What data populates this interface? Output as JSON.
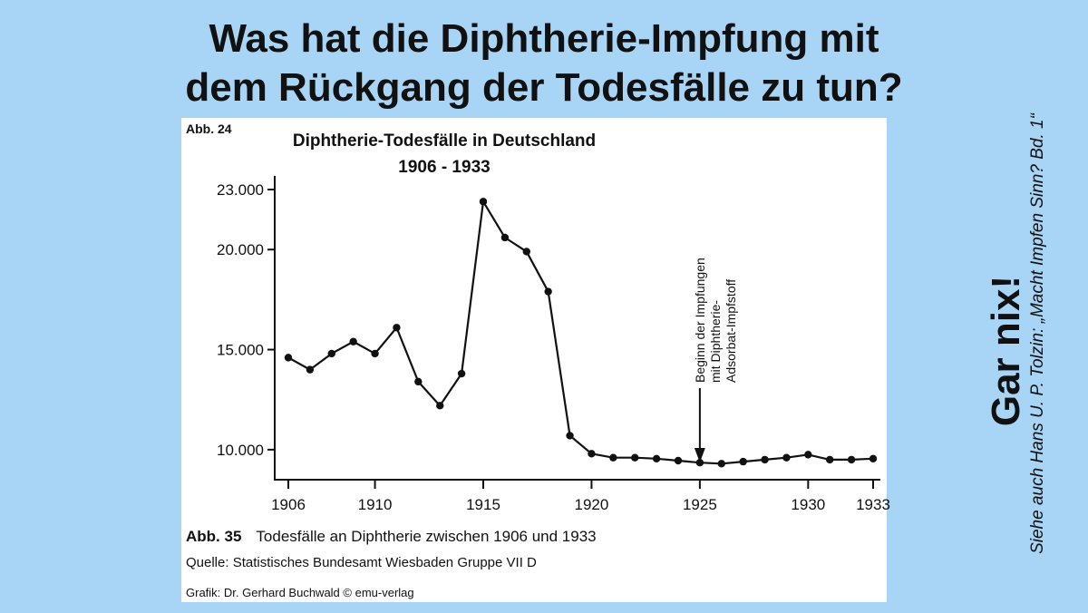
{
  "headline": {
    "line1": "Was hat die Diphtherie-Impfung mit",
    "line2": "dem Rückgang der Todesfälle zu tun?"
  },
  "side": {
    "verdict": "Gar nix!",
    "source": "Siehe auch Hans U. P. Tolzin: „Macht Impfen Sinn? Bd. 1“"
  },
  "figure": {
    "label_top": "Abb. 24",
    "caption_label": "Abb. 35",
    "caption_text": "Todesfälle an Diphtherie zwischen 1906 und 1933",
    "quelle": "Quelle: Statistisches Bundesamt Wiesbaden Gruppe VII D",
    "credit": "Grafik: Dr. Gerhard Buchwald   © emu-verlag"
  },
  "chart_data": {
    "type": "line",
    "title": "Diphtherie-Todesfälle in Deutschland",
    "subtitle": "1906 - 1933",
    "x": [
      1906,
      1907,
      1908,
      1909,
      1910,
      1911,
      1912,
      1913,
      1914,
      1915,
      1916,
      1917,
      1918,
      1919,
      1920,
      1921,
      1922,
      1923,
      1924,
      1925,
      1926,
      1927,
      1928,
      1929,
      1930,
      1931,
      1932,
      1933
    ],
    "series": [
      {
        "values": [
          14600,
          14000,
          14800,
          15400,
          14800,
          16100,
          13400,
          12200,
          13800,
          22400,
          20600,
          19900,
          17900,
          10700,
          9800,
          9600,
          9600,
          9550,
          9450,
          9350,
          9300,
          9400,
          9500,
          9600,
          9750,
          9500,
          9500,
          9550
        ]
      }
    ],
    "ylim": [
      8000,
      23500
    ],
    "xlim": [
      1906,
      1933
    ],
    "yticks": [
      10000,
      15000,
      20000,
      23000
    ],
    "ytick_labels": [
      "10.000",
      "15.000",
      "20.000",
      "23.000"
    ],
    "xticks": [
      1906,
      1910,
      1915,
      1920,
      1925,
      1930,
      1933
    ],
    "grid": false,
    "annotations": [
      {
        "x": 1925,
        "lines": [
          "Beginn der Impfungen",
          "mit Diphtherie-",
          "Adsorbat-Impfstoff"
        ],
        "arrow": "down"
      }
    ],
    "line_color": "#111111"
  }
}
